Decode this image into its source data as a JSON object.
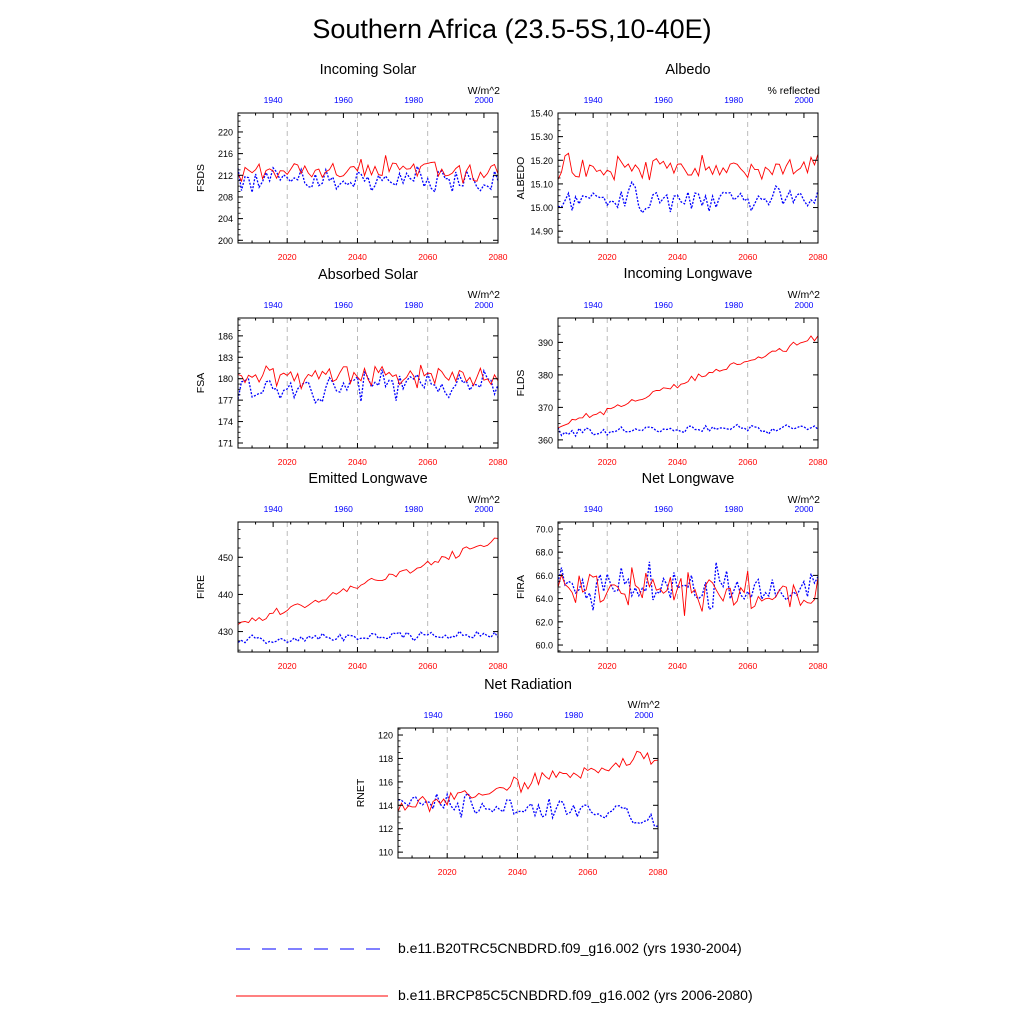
{
  "title": "Southern Africa (23.5-5S,10-40E)",
  "colors": {
    "historical": "#0000ff",
    "future": "#ff0000",
    "axis": "#000000",
    "grid": "#aaaaaa"
  },
  "legend": [
    {
      "label": "b.e11.B20TRC5CNBDRD.f09_g16.002 (yrs 1930-2004)",
      "style": "dashed",
      "color": "#0000ff"
    },
    {
      "label": "b.e11.BRCP85C5CNBDRD.f09_g16.002 (yrs 2006-2080)",
      "style": "solid",
      "color": "#ff0000"
    }
  ],
  "chart_data": [
    {
      "type": "line",
      "title": "Incoming Solar",
      "ylabel": "FSDS",
      "units": "W/m^2",
      "ylim": [
        199.5,
        223.5
      ],
      "yticks": [
        200,
        204,
        208,
        212,
        216,
        220
      ],
      "ytick_decimals": 0,
      "top_axis": {
        "range": [
          1930,
          2004
        ],
        "ticks": [
          1940,
          1960,
          1980,
          2000
        ]
      },
      "bottom_axis": {
        "range": [
          2006,
          2080
        ],
        "ticks": [
          2020,
          2040,
          2060,
          2080
        ]
      },
      "series": [
        {
          "name": "historical",
          "years": [
            1930,
            2004
          ],
          "mean": 211,
          "amp": 3.8,
          "trend": 0,
          "seed": 11
        },
        {
          "name": "future",
          "years": [
            2006,
            2080
          ],
          "mean": 213.2,
          "amp": 3.2,
          "trend": 0,
          "seed": 12
        }
      ]
    },
    {
      "type": "line",
      "title": "Albedo",
      "ylabel": "ALBEDO",
      "units": "% reflected",
      "ylim": [
        14.85,
        15.4
      ],
      "yticks": [
        14.9,
        15.0,
        15.1,
        15.2,
        15.3,
        15.4
      ],
      "ytick_decimals": 2,
      "top_axis": {
        "range": [
          1930,
          2004
        ],
        "ticks": [
          1940,
          1960,
          1980,
          2000
        ]
      },
      "bottom_axis": {
        "range": [
          2006,
          2080
        ],
        "ticks": [
          2020,
          2040,
          2060,
          2080
        ]
      },
      "series": [
        {
          "name": "historical",
          "years": [
            1930,
            2004
          ],
          "mean": 15.04,
          "amp": 0.09,
          "trend": 0,
          "seed": 21
        },
        {
          "name": "future",
          "years": [
            2006,
            2080
          ],
          "mean": 15.17,
          "amp": 0.09,
          "trend": 0,
          "seed": 22
        }
      ]
    },
    {
      "type": "line",
      "title": "Absorbed Solar",
      "ylabel": "FSA",
      "units": "W/m^2",
      "ylim": [
        170.3,
        188.5
      ],
      "yticks": [
        171,
        174,
        177,
        180,
        183,
        186
      ],
      "ytick_decimals": 0,
      "top_axis": {
        "range": [
          1930,
          2004
        ],
        "ticks": [
          1940,
          1960,
          1980,
          2000
        ]
      },
      "bottom_axis": {
        "range": [
          2006,
          2080
        ],
        "ticks": [
          2020,
          2040,
          2060,
          2080
        ]
      },
      "series": [
        {
          "name": "historical",
          "years": [
            1930,
            2004
          ],
          "mean": 179,
          "amp": 3.2,
          "trend": 0,
          "seed": 31
        },
        {
          "name": "future",
          "years": [
            2006,
            2080
          ],
          "mean": 180.6,
          "amp": 2.6,
          "trend": 0,
          "seed": 32
        }
      ]
    },
    {
      "type": "line",
      "title": "Incoming Longwave",
      "ylabel": "FLDS",
      "units": "W/m^2",
      "ylim": [
        357.5,
        397.5
      ],
      "yticks": [
        360,
        370,
        380,
        390
      ],
      "ytick_decimals": 0,
      "top_axis": {
        "range": [
          1930,
          2004
        ],
        "ticks": [
          1940,
          1960,
          1980,
          2000
        ]
      },
      "bottom_axis": {
        "range": [
          2006,
          2080
        ],
        "ticks": [
          2020,
          2040,
          2060,
          2080
        ]
      },
      "series": [
        {
          "name": "historical",
          "years": [
            1930,
            2004
          ],
          "mean": 363.2,
          "amp": 2.0,
          "trend": 1.5,
          "seed": 41
        },
        {
          "name": "future",
          "years": [
            2006,
            2080
          ],
          "mean": 378,
          "amp": 1.6,
          "trend": 28,
          "seed": 42
        }
      ]
    },
    {
      "type": "line",
      "title": "Emitted Longwave",
      "ylabel": "FIRE",
      "units": "W/m^2",
      "ylim": [
        424.5,
        459.5
      ],
      "yticks": [
        430,
        440,
        450
      ],
      "ytick_decimals": 0,
      "top_axis": {
        "range": [
          1930,
          2004
        ],
        "ticks": [
          1940,
          1960,
          1980,
          2000
        ]
      },
      "bottom_axis": {
        "range": [
          2006,
          2080
        ],
        "ticks": [
          2020,
          2040,
          2060,
          2080
        ]
      },
      "series": [
        {
          "name": "historical",
          "years": [
            1930,
            2004
          ],
          "mean": 428.5,
          "amp": 1.8,
          "trend": 2,
          "seed": 51
        },
        {
          "name": "future",
          "years": [
            2006,
            2080
          ],
          "mean": 443,
          "amp": 1.6,
          "trend": 23,
          "seed": 52
        }
      ]
    },
    {
      "type": "line",
      "title": "Net Longwave",
      "ylabel": "FIRA",
      "units": "W/m^2",
      "ylim": [
        59.4,
        70.6
      ],
      "yticks": [
        60.0,
        62.0,
        64.0,
        66.0,
        68.0,
        70.0
      ],
      "ytick_decimals": 1,
      "top_axis": {
        "range": [
          1930,
          2004
        ],
        "ticks": [
          1940,
          1960,
          1980,
          2000
        ]
      },
      "bottom_axis": {
        "range": [
          2006,
          2080
        ],
        "ticks": [
          2020,
          2040,
          2060,
          2080
        ]
      },
      "series": [
        {
          "name": "historical",
          "years": [
            1930,
            2004
          ],
          "mean": 65,
          "amp": 2.6,
          "trend": 0,
          "seed": 61
        },
        {
          "name": "future",
          "years": [
            2006,
            2080
          ],
          "mean": 64.6,
          "amp": 2.4,
          "trend": -1,
          "seed": 62
        }
      ]
    },
    {
      "type": "line",
      "title": "Net Radiation",
      "ylabel": "RNET",
      "units": "W/m^2",
      "ylim": [
        109.5,
        120.6
      ],
      "yticks": [
        110,
        112,
        114,
        116,
        118,
        120
      ],
      "ytick_decimals": 0,
      "top_axis": {
        "range": [
          1930,
          2004
        ],
        "ticks": [
          1940,
          1960,
          1980,
          2000
        ]
      },
      "bottom_axis": {
        "range": [
          2006,
          2080
        ],
        "ticks": [
          2020,
          2040,
          2060,
          2080
        ]
      },
      "series": [
        {
          "name": "historical",
          "years": [
            1930,
            2004
          ],
          "mean": 113.8,
          "amp": 1.3,
          "trend": -1.5,
          "seed": 71
        },
        {
          "name": "future",
          "years": [
            2006,
            2080
          ],
          "mean": 116,
          "amp": 1.1,
          "trend": 4.5,
          "seed": 72
        }
      ]
    }
  ]
}
